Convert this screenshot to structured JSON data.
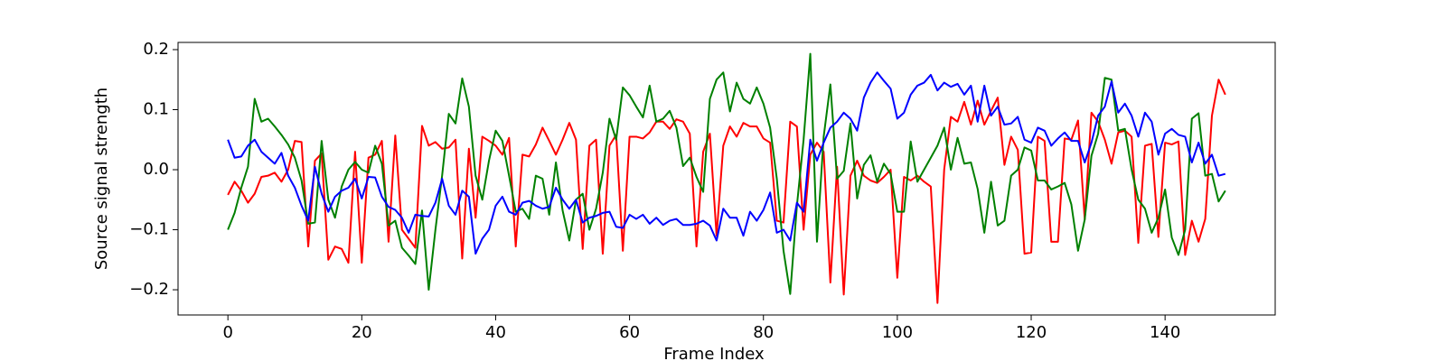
{
  "chart_data": {
    "type": "line",
    "xlabel": "Frame Index",
    "ylabel": "Source signal strength",
    "x": [
      0,
      1,
      2,
      3,
      4,
      5,
      6,
      7,
      8,
      9,
      10,
      11,
      12,
      13,
      14,
      15,
      16,
      17,
      18,
      19,
      20,
      21,
      22,
      23,
      24,
      25,
      26,
      27,
      28,
      29,
      30,
      31,
      32,
      33,
      34,
      35,
      36,
      37,
      38,
      39,
      40,
      41,
      42,
      43,
      44,
      45,
      46,
      47,
      48,
      49,
      50,
      51,
      52,
      53,
      54,
      55,
      56,
      57,
      58,
      59,
      60,
      61,
      62,
      63,
      64,
      65,
      66,
      67,
      68,
      69,
      70,
      71,
      72,
      73,
      74,
      75,
      76,
      77,
      78,
      79,
      80,
      81,
      82,
      83,
      84,
      85,
      86,
      87,
      88,
      89,
      90,
      91,
      92,
      93,
      94,
      95,
      96,
      97,
      98,
      99,
      100,
      101,
      102,
      103,
      104,
      105,
      106,
      107,
      108,
      109,
      110,
      111,
      112,
      113,
      114,
      115,
      116,
      117,
      118,
      119,
      120,
      121,
      122,
      123,
      124,
      125,
      126,
      127,
      128,
      129,
      130,
      131,
      132,
      133,
      134,
      135,
      136,
      137,
      138,
      139,
      140,
      141,
      142,
      143,
      144,
      145,
      146,
      147,
      148,
      149
    ],
    "series": [
      {
        "color": "red",
        "values": [
          -0.042,
          -0.02,
          -0.035,
          -0.055,
          -0.04,
          -0.012,
          -0.01,
          -0.005,
          -0.02,
          0.0,
          0.048,
          0.046,
          -0.128,
          0.015,
          0.027,
          -0.15,
          -0.128,
          -0.132,
          -0.155,
          0.03,
          -0.155,
          0.02,
          0.025,
          0.048,
          -0.12,
          0.057,
          -0.1,
          -0.115,
          -0.13,
          0.073,
          0.04,
          0.046,
          0.035,
          0.037,
          0.05,
          -0.148,
          0.035,
          -0.08,
          0.055,
          0.048,
          0.04,
          0.025,
          0.053,
          -0.128,
          0.025,
          0.022,
          0.042,
          0.07,
          0.048,
          0.025,
          0.05,
          0.078,
          0.05,
          -0.132,
          0.04,
          0.05,
          -0.14,
          0.04,
          0.058,
          -0.135,
          0.055,
          0.055,
          0.052,
          0.062,
          0.08,
          0.08,
          0.068,
          0.084,
          0.08,
          0.06,
          -0.128,
          0.03,
          0.06,
          -0.11,
          0.04,
          0.072,
          0.055,
          0.078,
          0.072,
          0.072,
          0.052,
          0.045,
          -0.085,
          -0.088,
          0.08,
          0.072,
          -0.1,
          0.025,
          0.045,
          0.03,
          -0.188,
          0.005,
          -0.208,
          -0.01,
          0.015,
          -0.01,
          -0.018,
          -0.022,
          -0.012,
          0.0,
          -0.18,
          -0.012,
          -0.018,
          -0.01,
          -0.02,
          -0.028,
          -0.222,
          0.0,
          0.088,
          0.08,
          0.113,
          0.075,
          0.115,
          0.075,
          0.098,
          0.12,
          0.008,
          0.055,
          0.033,
          -0.14,
          -0.138,
          0.055,
          0.048,
          -0.12,
          -0.12,
          0.052,
          0.05,
          0.082,
          -0.083,
          0.095,
          0.08,
          0.05,
          0.01,
          0.062,
          0.065,
          0.055,
          -0.122,
          0.04,
          0.043,
          -0.112,
          0.045,
          0.042,
          0.047,
          -0.142,
          -0.085,
          -0.12,
          -0.082,
          0.09,
          0.15,
          0.125
        ]
      },
      {
        "color": "green",
        "values": [
          -0.1,
          -0.072,
          -0.03,
          0.005,
          0.118,
          0.08,
          0.085,
          0.072,
          0.058,
          0.042,
          0.02,
          -0.018,
          -0.09,
          -0.088,
          0.048,
          -0.05,
          -0.08,
          -0.028,
          0.0,
          0.013,
          0.0,
          -0.005,
          0.04,
          0.01,
          -0.093,
          -0.085,
          -0.13,
          -0.143,
          -0.157,
          -0.068,
          -0.2,
          -0.1,
          -0.01,
          0.093,
          0.077,
          0.152,
          0.105,
          -0.01,
          -0.05,
          0.015,
          0.065,
          0.048,
          -0.01,
          -0.07,
          -0.065,
          -0.082,
          -0.01,
          -0.015,
          -0.075,
          0.012,
          -0.068,
          -0.118,
          -0.05,
          -0.04,
          -0.1,
          -0.065,
          -0.005,
          0.085,
          0.05,
          0.137,
          0.124,
          0.105,
          0.087,
          0.14,
          0.08,
          0.085,
          0.098,
          0.07,
          0.006,
          0.02,
          -0.012,
          -0.037,
          0.118,
          0.15,
          0.162,
          0.097,
          0.145,
          0.118,
          0.11,
          0.137,
          0.11,
          0.07,
          -0.015,
          -0.135,
          -0.207,
          -0.06,
          0.05,
          0.193,
          -0.12,
          0.055,
          0.142,
          -0.015,
          -0.002,
          0.077,
          -0.048,
          0.008,
          0.024,
          -0.02,
          0.01,
          -0.007,
          -0.07,
          -0.07,
          0.047,
          -0.02,
          0.0,
          0.02,
          0.04,
          0.07,
          0.0,
          0.053,
          0.01,
          0.012,
          -0.032,
          -0.105,
          -0.02,
          -0.093,
          -0.085,
          -0.01,
          0.0,
          0.037,
          0.032,
          -0.018,
          -0.018,
          -0.033,
          -0.028,
          -0.022,
          -0.058,
          -0.135,
          -0.083,
          0.023,
          0.06,
          0.153,
          0.15,
          0.065,
          0.068,
          0.0,
          -0.05,
          -0.065,
          -0.105,
          -0.08,
          -0.033,
          -0.113,
          -0.142,
          -0.1,
          0.085,
          0.094,
          -0.01,
          -0.007,
          -0.053,
          -0.035
        ]
      },
      {
        "color": "blue",
        "values": [
          0.05,
          0.02,
          0.022,
          0.04,
          0.05,
          0.03,
          0.02,
          0.01,
          0.028,
          -0.01,
          -0.03,
          -0.06,
          -0.085,
          0.005,
          -0.04,
          -0.07,
          -0.045,
          -0.035,
          -0.03,
          -0.015,
          -0.048,
          -0.012,
          -0.013,
          -0.045,
          -0.062,
          -0.067,
          -0.08,
          -0.105,
          -0.075,
          -0.077,
          -0.078,
          -0.055,
          -0.015,
          -0.06,
          -0.075,
          -0.035,
          -0.045,
          -0.14,
          -0.115,
          -0.1,
          -0.06,
          -0.045,
          -0.07,
          -0.075,
          -0.055,
          -0.052,
          -0.06,
          -0.065,
          -0.062,
          -0.03,
          -0.05,
          -0.065,
          -0.05,
          -0.088,
          -0.08,
          -0.077,
          -0.072,
          -0.07,
          -0.095,
          -0.097,
          -0.075,
          -0.082,
          -0.075,
          -0.09,
          -0.08,
          -0.092,
          -0.085,
          -0.082,
          -0.092,
          -0.092,
          -0.09,
          -0.085,
          -0.093,
          -0.118,
          -0.065,
          -0.08,
          -0.08,
          -0.11,
          -0.07,
          -0.085,
          -0.067,
          -0.038,
          -0.105,
          -0.1,
          -0.118,
          -0.055,
          -0.07,
          0.05,
          0.015,
          0.045,
          0.07,
          0.08,
          0.095,
          0.085,
          0.065,
          0.12,
          0.145,
          0.162,
          0.148,
          0.135,
          0.085,
          0.095,
          0.125,
          0.14,
          0.145,
          0.158,
          0.132,
          0.145,
          0.138,
          0.143,
          0.125,
          0.14,
          0.08,
          0.14,
          0.09,
          0.105,
          0.075,
          0.077,
          0.088,
          0.05,
          0.045,
          0.07,
          0.065,
          0.04,
          0.052,
          0.062,
          0.048,
          0.048,
          0.012,
          0.045,
          0.09,
          0.105,
          0.147,
          0.095,
          0.11,
          0.09,
          0.055,
          0.095,
          0.08,
          0.025,
          0.06,
          0.068,
          0.058,
          0.055,
          0.012,
          0.045,
          0.01,
          0.025,
          -0.01,
          -0.007
        ]
      }
    ],
    "xlim": [
      -7.45,
      156.45
    ],
    "ylim": [
      -0.242,
      0.212
    ],
    "xticks": [
      0,
      20,
      40,
      60,
      80,
      100,
      120,
      140
    ],
    "yticks": [
      {
        "value": -0.2,
        "label": "−0.2"
      },
      {
        "value": -0.1,
        "label": "−0.1"
      },
      {
        "value": 0,
        "label": "0.0"
      },
      0.1,
      0.2
    ]
  }
}
